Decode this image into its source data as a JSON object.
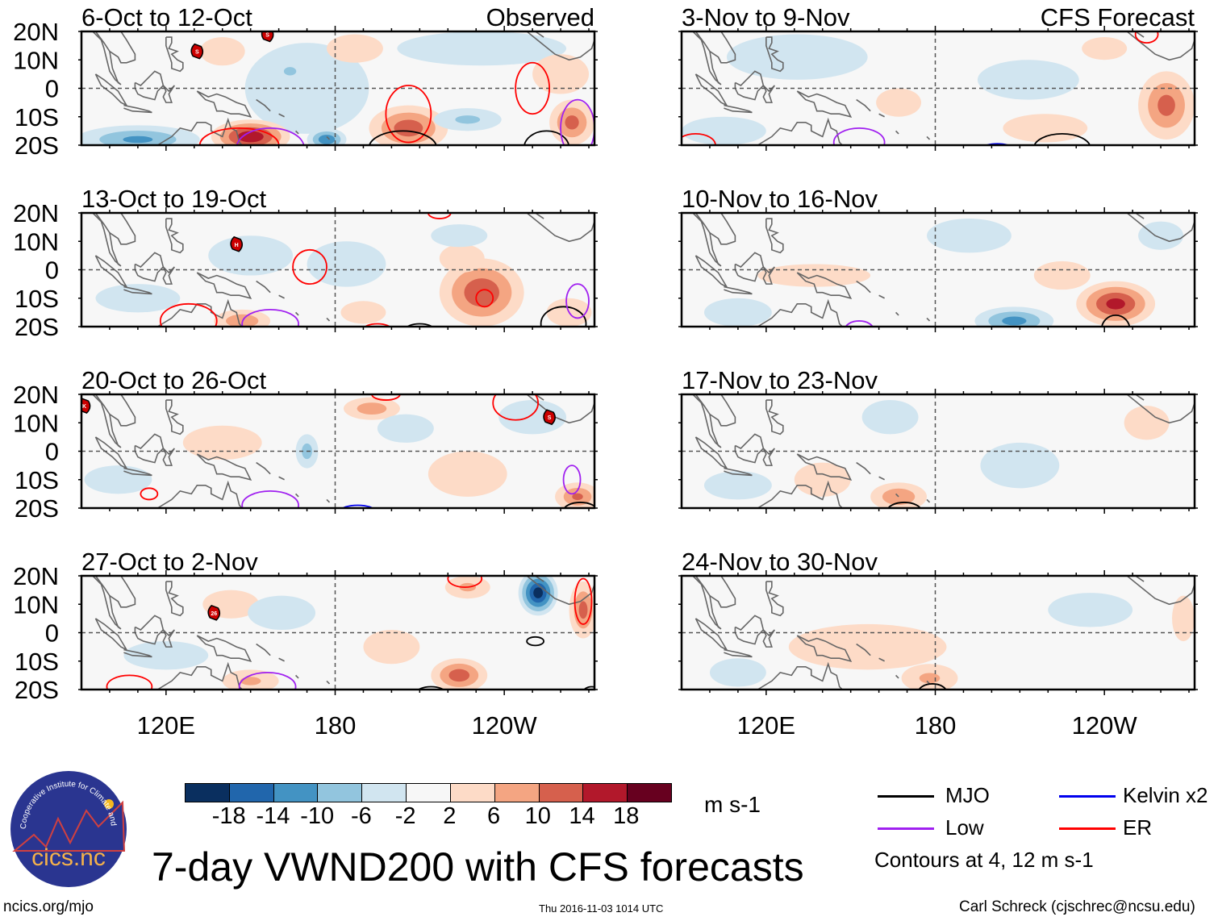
{
  "chart_data": {
    "type": "heatmap",
    "title": "7-day VWND200 with CFS forecasts",
    "units": "m s-1",
    "lon_range": [
      90,
      272
    ],
    "lat_range": [
      -20,
      20
    ],
    "lat_ticks": [
      "20N",
      "10N",
      "0",
      "10S",
      "20S"
    ],
    "lon_ticks": [
      {
        "lon": 120,
        "label": "120E"
      },
      {
        "lon": 180,
        "label": "180"
      },
      {
        "lon": 240,
        "label": "120W"
      }
    ],
    "colorbar": {
      "levels": [
        "-18",
        "-14",
        "-10",
        "-6",
        "-2",
        "2",
        "6",
        "10",
        "14",
        "18"
      ],
      "colors": [
        "#0a2f5f",
        "#2166ac",
        "#4393c3",
        "#92c5de",
        "#d1e5f0",
        "#f7f7f7",
        "#fddbc7",
        "#f4a582",
        "#d6604d",
        "#b2182b",
        "#67001f"
      ]
    },
    "contour_legend": [
      {
        "name": "MJO",
        "color": "#000000"
      },
      {
        "name": "Kelvin x2",
        "color": "#0000ee"
      },
      {
        "name": "Low",
        "color": "#a020f0"
      },
      {
        "name": "ER",
        "color": "#ff0000"
      }
    ],
    "contour_note": "Contours at 4, 12 m s-1",
    "panels": [
      {
        "title": "6-Oct to 12-Oct",
        "tag": "Observed",
        "anomalies": [
          [
            110,
            -18,
            22,
            5,
            -10
          ],
          [
            170,
            0,
            22,
            16,
            -3
          ],
          [
            164,
            6,
            6,
            4,
            -6
          ],
          [
            150,
            -17,
            14,
            6,
            17
          ],
          [
            177,
            -18,
            7,
            4,
            -13
          ],
          [
            206,
            -14,
            14,
            8,
            12
          ],
          [
            227,
            -11,
            12,
            4,
            -6
          ],
          [
            187,
            14,
            10,
            5,
            3
          ],
          [
            232,
            14,
            30,
            6,
            -3
          ],
          [
            264,
            -12,
            8,
            8,
            11
          ],
          [
            140,
            13,
            8,
            5,
            3
          ],
          [
            260,
            5,
            10,
            7,
            3
          ]
        ],
        "contours": [
          [
            "ER",
            206,
            -9,
            8,
            10
          ],
          [
            "MJO",
            204,
            -21,
            12,
            6
          ],
          [
            "ER",
            250,
            0,
            6,
            9
          ],
          [
            "MJO",
            255,
            -21,
            8,
            6
          ],
          [
            "Low",
            266,
            -14,
            6,
            10
          ],
          [
            "ER",
            146,
            -20,
            14,
            6
          ],
          [
            "Low",
            157,
            -21,
            12,
            7
          ]
        ],
        "storms": [
          {
            "lon": 131,
            "lat": 13,
            "label": "S"
          },
          {
            "lon": 156,
            "lat": 19,
            "label": "S"
          }
        ]
      },
      {
        "title": "13-Oct to 19-Oct",
        "tag": "",
        "anomalies": [
          [
            232,
            -8,
            15,
            12,
            13
          ],
          [
            225,
            4,
            8,
            5,
            3
          ],
          [
            147,
            -18,
            10,
            4,
            9
          ],
          [
            184,
            2,
            14,
            8,
            -3
          ],
          [
            224,
            12,
            10,
            4,
            -4
          ],
          [
            150,
            5,
            15,
            7,
            -3
          ],
          [
            110,
            -10,
            15,
            5,
            -3
          ],
          [
            190,
            -15,
            8,
            4,
            3
          ],
          [
            263,
            -15,
            8,
            5,
            4
          ]
        ],
        "contours": [
          [
            "ER",
            171,
            1,
            6,
            6
          ],
          [
            "ER",
            233,
            -10,
            3,
            3
          ],
          [
            "ER",
            128,
            -18,
            10,
            6
          ],
          [
            "Low",
            157,
            -19,
            10,
            5
          ],
          [
            "MJO",
            261,
            -19,
            8,
            6
          ],
          [
            "Low",
            266,
            -11,
            4,
            6
          ],
          [
            "ER",
            195,
            -21,
            5,
            2
          ],
          [
            "MJO",
            210,
            -21,
            5,
            2
          ],
          [
            "ER",
            217,
            20,
            4,
            2
          ]
        ],
        "storms": [
          {
            "lon": 145,
            "lat": 9,
            "label": "H"
          }
        ]
      },
      {
        "title": "20-Oct to 26-Oct",
        "tag": "",
        "anomalies": [
          [
            193,
            15,
            10,
            4,
            8
          ],
          [
            170,
            0,
            4,
            6,
            -7
          ],
          [
            227,
            -8,
            14,
            8,
            4
          ],
          [
            266,
            -16,
            8,
            5,
            10
          ],
          [
            103,
            -10,
            12,
            5,
            -3
          ],
          [
            140,
            3,
            14,
            6,
            3
          ],
          [
            205,
            8,
            10,
            5,
            -3
          ],
          [
            250,
            12,
            12,
            6,
            -3
          ]
        ],
        "contours": [
          [
            "ER",
            244,
            17,
            8,
            6
          ],
          [
            "Low",
            157,
            -19,
            10,
            5
          ],
          [
            "ER",
            114,
            -15,
            3,
            2
          ],
          [
            "Low",
            264,
            -10,
            3,
            5
          ],
          [
            "MJO",
            267,
            -21,
            6,
            3
          ],
          [
            "Kelvin x2",
            188,
            -21,
            6,
            2
          ],
          [
            "ER",
            198,
            20,
            5,
            2
          ]
        ],
        "storms": [
          {
            "lon": 91,
            "lat": 16,
            "label": "K"
          },
          {
            "lon": 256,
            "lat": 12,
            "label": "S"
          }
        ]
      },
      {
        "title": "27-Oct to 2-Nov",
        "tag": "",
        "anomalies": [
          [
            252,
            14,
            7,
            8,
            -20
          ],
          [
            268,
            8,
            5,
            10,
            11
          ],
          [
            224,
            -15,
            10,
            6,
            12
          ],
          [
            143,
            10,
            10,
            5,
            3
          ],
          [
            161,
            7,
            12,
            6,
            -4
          ],
          [
            227,
            16,
            8,
            4,
            6
          ],
          [
            150,
            -17,
            10,
            4,
            6
          ],
          [
            120,
            -8,
            15,
            5,
            -3
          ],
          [
            200,
            -5,
            10,
            6,
            3
          ]
        ],
        "contours": [
          [
            "MJO",
            251,
            -3,
            3,
            1.5
          ],
          [
            "ER",
            226,
            19,
            6,
            3
          ],
          [
            "ER",
            107,
            -19,
            8,
            4
          ],
          [
            "Low",
            156,
            -19,
            10,
            5
          ],
          [
            "ER",
            268,
            11,
            3,
            8
          ],
          [
            "MJO",
            214,
            -21,
            5,
            2
          ],
          [
            "MJO",
            271,
            -21,
            3,
            2
          ]
        ],
        "storms": [
          {
            "lon": 137,
            "lat": 7,
            "label": "26"
          }
        ]
      },
      {
        "title": "3-Nov to 9-Nov",
        "tag": "CFS Forecast",
        "anomalies": [
          [
            262,
            -6,
            10,
            12,
            11
          ],
          [
            167,
            -5,
            8,
            5,
            3
          ],
          [
            131,
            11,
            25,
            8,
            -3
          ],
          [
            213,
            3,
            18,
            7,
            -3
          ],
          [
            219,
            -14,
            15,
            5,
            3
          ],
          [
            105,
            -15,
            15,
            5,
            -3
          ],
          [
            240,
            14,
            8,
            4,
            3
          ]
        ],
        "contours": [
          [
            "ER",
            255,
            19,
            4,
            3
          ],
          [
            "Low",
            153,
            -19,
            9,
            5
          ],
          [
            "MJO",
            225,
            -21,
            10,
            5
          ],
          [
            "Kelvin x2",
            202,
            -21,
            5,
            1.5
          ],
          [
            "ER",
            95,
            -20,
            7,
            4
          ]
        ],
        "storms": []
      },
      {
        "title": "10-Nov to 16-Nov",
        "tag": "",
        "anomalies": [
          [
            244,
            -12,
            14,
            8,
            15
          ],
          [
            208,
            -18,
            14,
            5,
            -11
          ],
          [
            137,
            -2,
            20,
            4,
            3
          ],
          [
            192,
            12,
            15,
            6,
            -3
          ],
          [
            110,
            -15,
            12,
            5,
            -3
          ],
          [
            260,
            12,
            8,
            5,
            -3
          ],
          [
            225,
            -2,
            10,
            5,
            3
          ]
        ],
        "contours": [
          [
            "MJO",
            244,
            -21,
            5,
            5
          ],
          [
            "Low",
            153,
            -21,
            5,
            3
          ]
        ],
        "storms": []
      },
      {
        "title": "17-Nov to 23-Nov",
        "tag": "",
        "anomalies": [
          [
            167,
            -16,
            10,
            5,
            9
          ],
          [
            140,
            -10,
            10,
            6,
            3
          ],
          [
            164,
            12,
            10,
            6,
            -3
          ],
          [
            210,
            -5,
            14,
            8,
            -2
          ],
          [
            255,
            10,
            8,
            6,
            3
          ],
          [
            110,
            -12,
            12,
            5,
            -3
          ]
        ],
        "contours": [
          [
            "MJO",
            169,
            -21,
            6,
            3
          ]
        ],
        "storms": []
      },
      {
        "title": "24-Nov to 30-Nov",
        "tag": "",
        "anomalies": [
          [
            156,
            -5,
            28,
            8,
            3
          ],
          [
            178,
            -16,
            10,
            5,
            6
          ],
          [
            235,
            8,
            15,
            6,
            -3
          ],
          [
            268,
            5,
            4,
            8,
            3
          ],
          [
            110,
            -14,
            10,
            5,
            -2
          ]
        ],
        "contours": [
          [
            "MJO",
            179,
            -21,
            5,
            3
          ]
        ],
        "storms": []
      }
    ]
  },
  "footer": {
    "logo_text": "cics.nc",
    "logo_ring_text": "Cooperative Institute for Climate and Satellites",
    "url": "ncics.org/mjo",
    "timestamp": "Thu 2016-11-03 1014 UTC",
    "author": "Carl Schreck (cjschrec@ncsu.edu)"
  }
}
